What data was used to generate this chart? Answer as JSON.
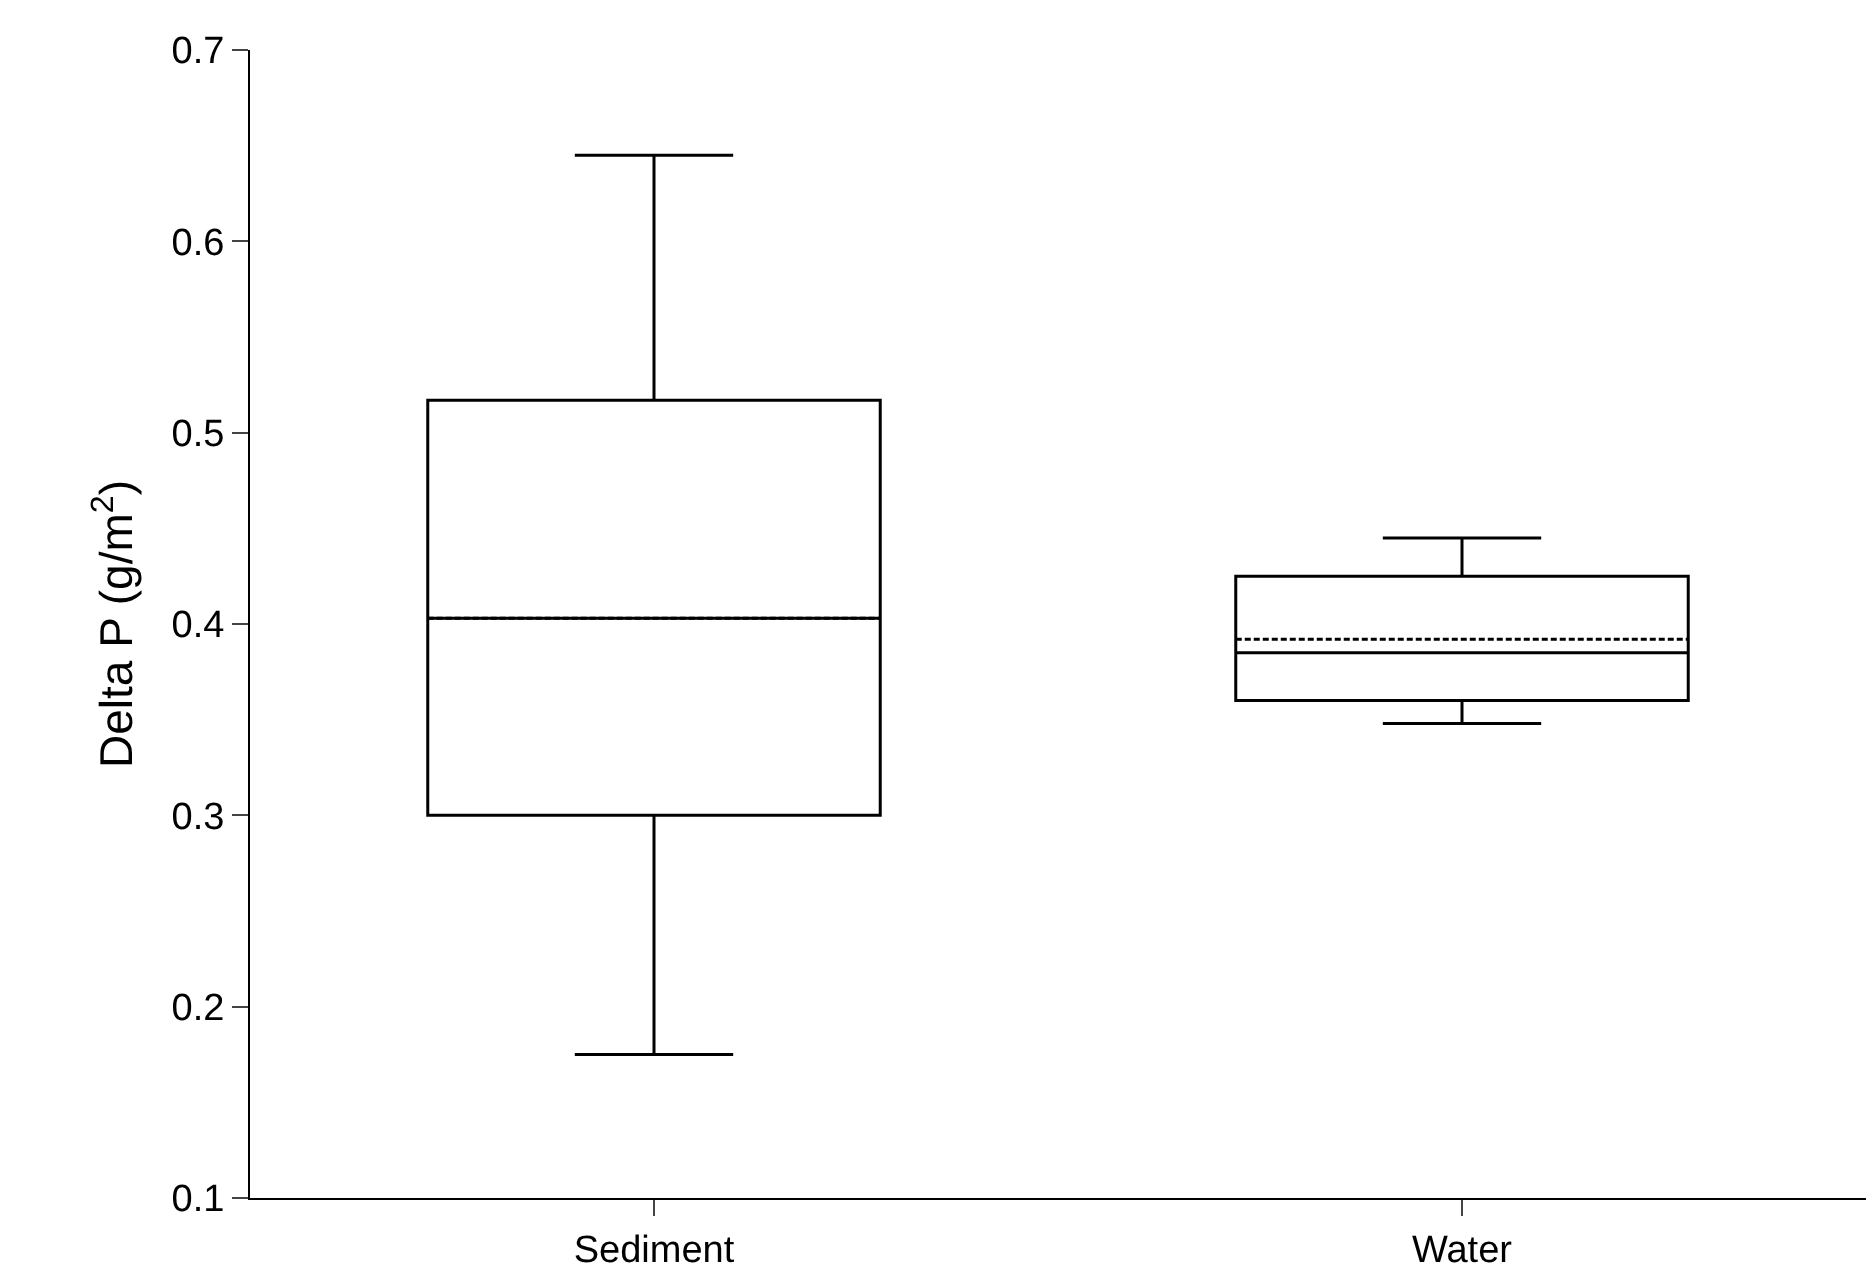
{
  "chart_data": {
    "type": "box",
    "ylabel": "Delta P (g/m$^{2}$)",
    "categories": [
      "Sediment",
      "Water"
    ],
    "boxes": [
      {
        "low": 0.175,
        "q1": 0.3,
        "median": 0.403,
        "q3": 0.517,
        "high": 0.645,
        "mean": 0.403
      },
      {
        "low": 0.348,
        "q1": 0.36,
        "median": 0.385,
        "q3": 0.425,
        "high": 0.445,
        "mean": 0.392
      }
    ],
    "color": "#000000",
    "ylim": [
      0.1,
      0.7
    ],
    "yticks": [
      0.1,
      0.2,
      0.3,
      0.4,
      0.5,
      0.6,
      0.7
    ]
  }
}
